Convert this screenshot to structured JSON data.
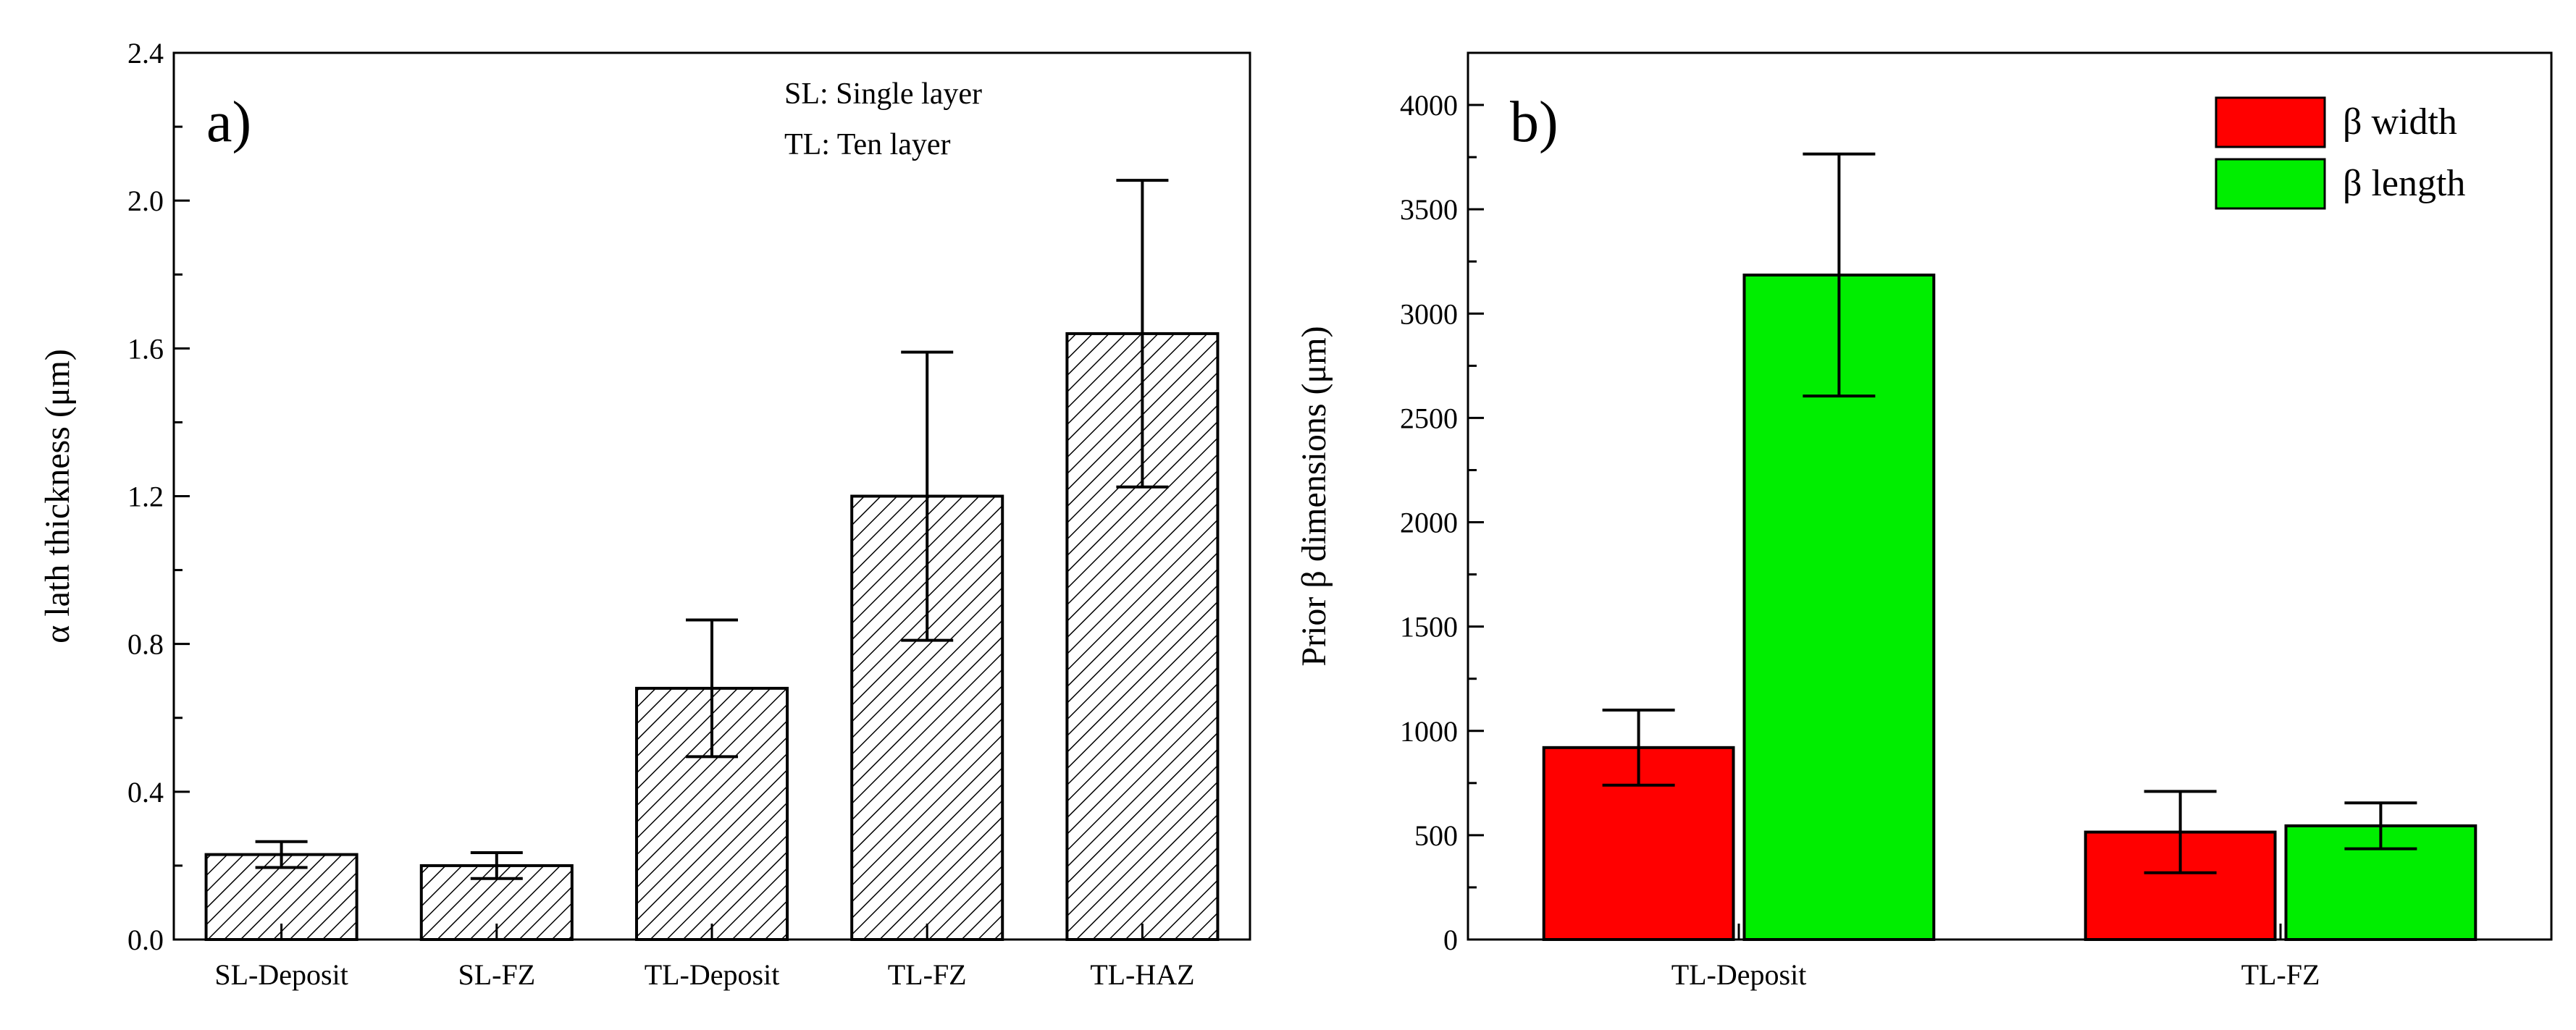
{
  "chart_data": [
    {
      "panel_label": "a)",
      "type": "bar",
      "ylabel": "α lath thickness (μm)",
      "xlabel": "",
      "ylim": [
        0.0,
        2.4
      ],
      "yticks": [
        0.0,
        0.4,
        0.8,
        1.2,
        1.6,
        2.0,
        2.4
      ],
      "ytick_labels": [
        "0.0",
        "0.4",
        "0.8",
        "1.2",
        "1.6",
        "2.0",
        "2.4"
      ],
      "categories": [
        "SL-Deposit",
        "SL-FZ",
        "TL-Deposit",
        "TL-FZ",
        "TL-HAZ"
      ],
      "values": [
        0.23,
        0.2,
        0.68,
        1.2,
        1.64
      ],
      "errors": [
        0.035,
        0.035,
        0.185,
        0.39,
        0.415
      ],
      "fill": "hatched",
      "annotations": [
        "SL: Single layer",
        "TL: Ten layer"
      ]
    },
    {
      "panel_label": "b)",
      "type": "bar",
      "ylabel": "Prior β dimensions (μm)",
      "xlabel": "",
      "ylim": [
        0,
        4250
      ],
      "yticks": [
        0,
        500,
        1000,
        1500,
        2000,
        2500,
        3000,
        3500,
        4000
      ],
      "ytick_labels": [
        "0",
        "500",
        "1000",
        "1500",
        "2000",
        "2500",
        "3000",
        "3500",
        "4000"
      ],
      "categories": [
        "TL-Deposit",
        "TL-FZ"
      ],
      "series": [
        {
          "name": "β width",
          "color": "#ff0000",
          "values": [
            920,
            515
          ],
          "errors": [
            180,
            195
          ]
        },
        {
          "name": "β length",
          "color": "#00ee00",
          "values": [
            3185,
            545
          ],
          "errors": [
            580,
            110
          ]
        }
      ],
      "legend_position": "top-right"
    }
  ]
}
